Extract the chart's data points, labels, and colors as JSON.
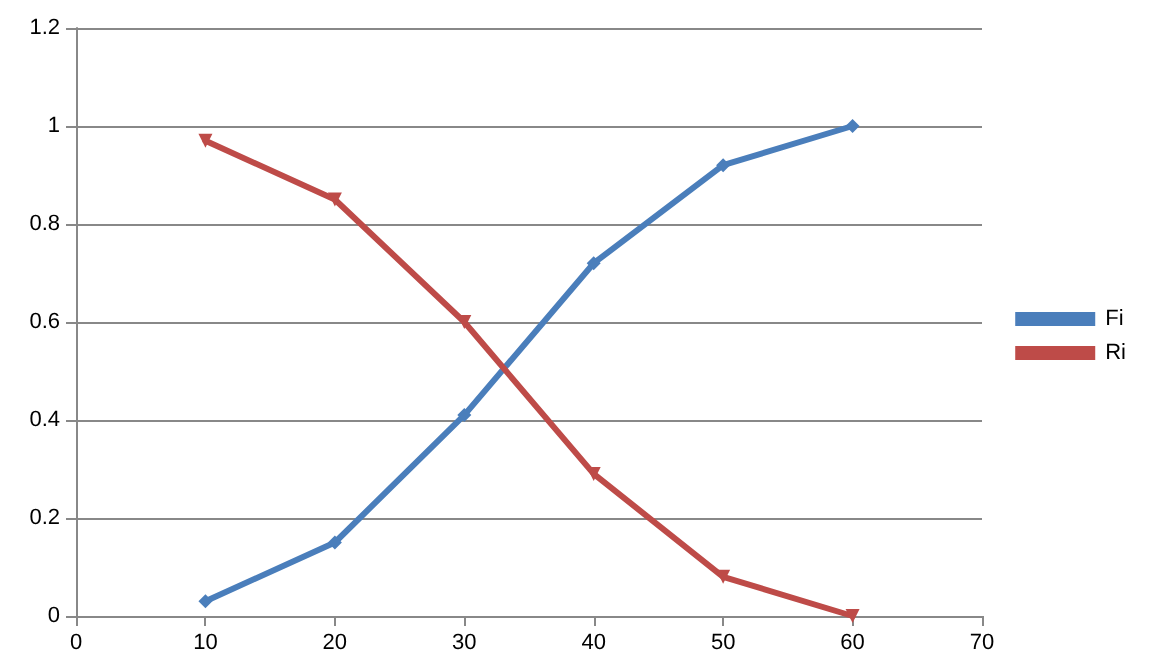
{
  "chart_data": {
    "type": "line",
    "x": [
      10,
      20,
      30,
      40,
      50,
      60
    ],
    "series": [
      {
        "name": "Fi",
        "color": "#4a7ebb",
        "marker": "diamond",
        "values": [
          0.03,
          0.15,
          0.41,
          0.72,
          0.92,
          1.0
        ]
      },
      {
        "name": "Ri",
        "color": "#be4b48",
        "marker": "triangle",
        "values": [
          0.97,
          0.85,
          0.6,
          0.29,
          0.08,
          0.0
        ]
      }
    ],
    "xlim": [
      0,
      70
    ],
    "xticks": [
      0,
      10,
      20,
      30,
      40,
      50,
      60,
      70
    ],
    "ylim": [
      0,
      1.2
    ],
    "yticks": [
      0,
      0.2,
      0.4,
      0.6,
      0.8,
      1,
      1.2
    ],
    "grid": "y",
    "legend": "right"
  }
}
